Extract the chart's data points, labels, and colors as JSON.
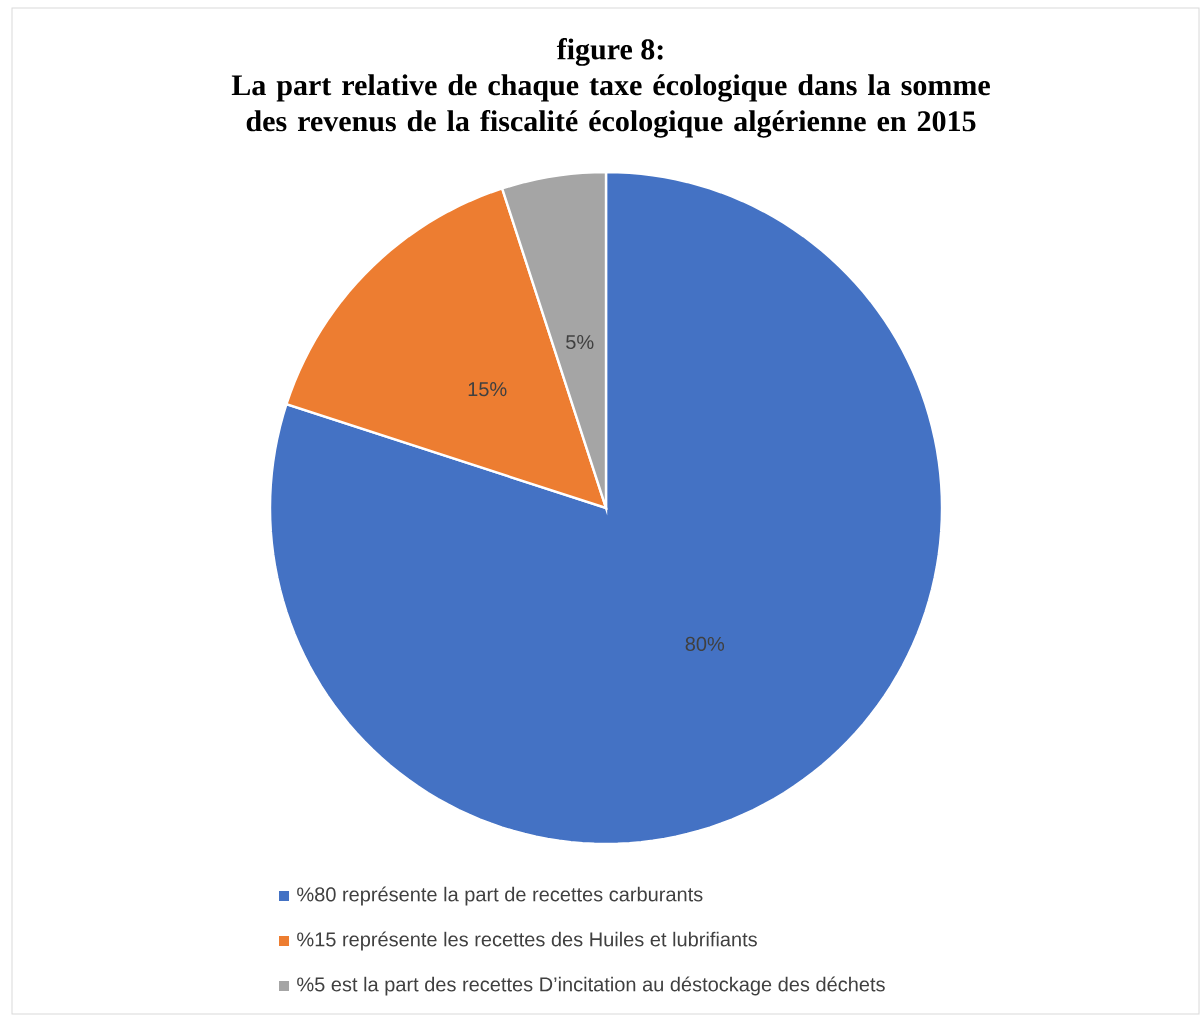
{
  "chart_data": {
    "type": "pie",
    "title": "figure 8:",
    "subtitle": "La part relative de chaque taxe écologique dans la somme des revenus de la fiscalité écologique algérienne en 2015",
    "categories": [
      "%80 représente la part de recettes carburants",
      "%15 représente les recettes des Huiles et lubrifiants",
      "%5 est la part des recettes D’incitation au déstockage des déchets"
    ],
    "values": [
      80,
      15,
      5
    ],
    "colors": [
      "#4472c4",
      "#ed7d31",
      "#a5a5a5"
    ],
    "value_labels": [
      "80%",
      "15%",
      "5%"
    ],
    "legend": "bottom"
  }
}
